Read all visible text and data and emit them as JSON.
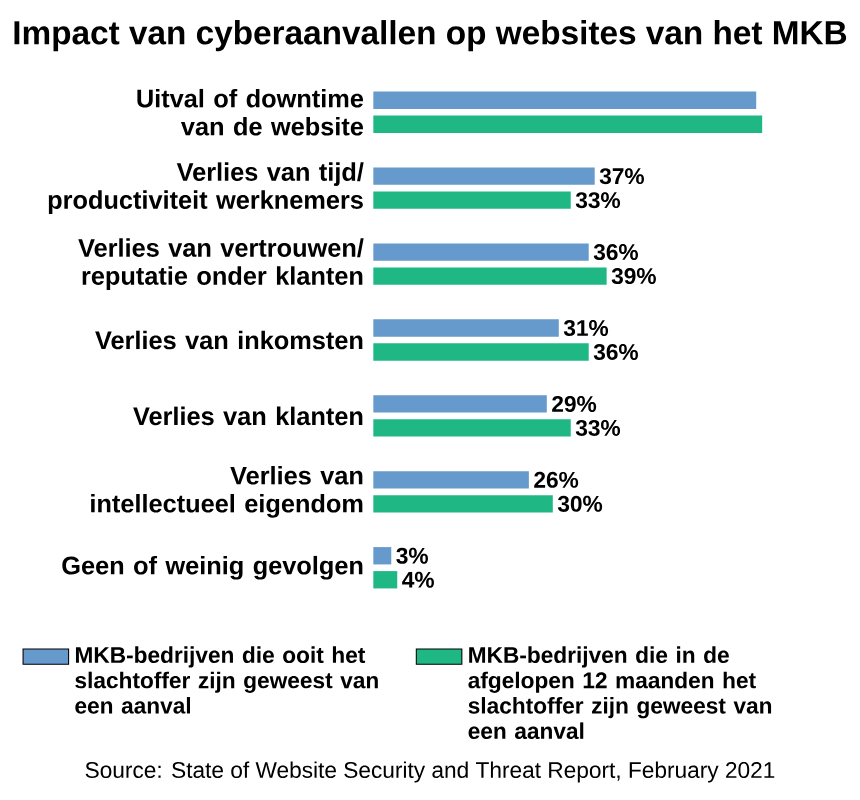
{
  "chart_data": {
    "type": "bar",
    "orientation": "horizontal",
    "title": "Impact van cyberaanvallen op websites van het MKB",
    "categories": [
      "Uitval of downtime van de website",
      "Verlies van tijd/ productiviteit werknemers",
      "Verlies van vertrouwen/ reputatie onder klanten",
      "Verlies van inkomsten",
      "Verlies van klanten",
      "Verlies van intellectueel eigendom",
      "Geen of weinig gevolgen"
    ],
    "series": [
      {
        "name": "MKB-bedrijven die ooit het slachtoffer zijn geweest van een aanval",
        "color": "#6699cc",
        "values": [
          64,
          37,
          36,
          31,
          29,
          26,
          3
        ],
        "value_labels": [
          null,
          "37%",
          "36%",
          "31%",
          "29%",
          "26%",
          "3%"
        ]
      },
      {
        "name": "MKB-bedrijven die in de afgelopen 12 maanden het slachtoffer zijn geweest van een aanval",
        "color": "#1fb885",
        "values": [
          65,
          33,
          39,
          36,
          33,
          30,
          4
        ],
        "value_labels": [
          null,
          "33%",
          "39%",
          "36%",
          "33%",
          "30%",
          "4%"
        ]
      }
    ],
    "legend": "bottom",
    "annotations": [
      "Source: State of Website Security and Threat Report, February 2021"
    ]
  }
}
